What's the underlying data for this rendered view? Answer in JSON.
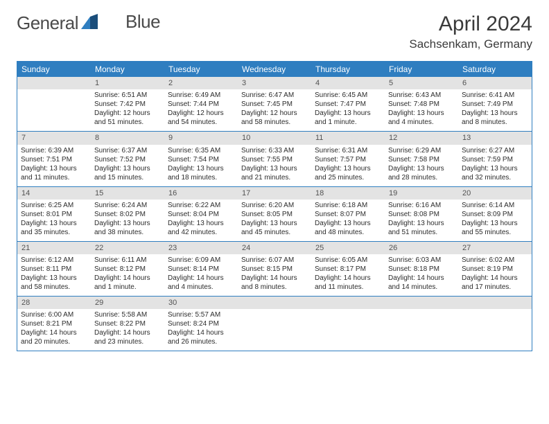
{
  "brand": {
    "part1": "General",
    "part2": "Blue"
  },
  "logo": {
    "color1": "#2f7ec0",
    "color2": "#1a4d7a"
  },
  "title": "April 2024",
  "location": "Sachsenkam, Germany",
  "header_bg": "#2f7ec0",
  "daynum_bg": "#e3e3e3",
  "day_names": [
    "Sunday",
    "Monday",
    "Tuesday",
    "Wednesday",
    "Thursday",
    "Friday",
    "Saturday"
  ],
  "weeks": [
    [
      {
        "n": "",
        "sr": "",
        "ss": "",
        "dl": ""
      },
      {
        "n": "1",
        "sr": "6:51 AM",
        "ss": "7:42 PM",
        "dl": "12 hours and 51 minutes."
      },
      {
        "n": "2",
        "sr": "6:49 AM",
        "ss": "7:44 PM",
        "dl": "12 hours and 54 minutes."
      },
      {
        "n": "3",
        "sr": "6:47 AM",
        "ss": "7:45 PM",
        "dl": "12 hours and 58 minutes."
      },
      {
        "n": "4",
        "sr": "6:45 AM",
        "ss": "7:47 PM",
        "dl": "13 hours and 1 minute."
      },
      {
        "n": "5",
        "sr": "6:43 AM",
        "ss": "7:48 PM",
        "dl": "13 hours and 4 minutes."
      },
      {
        "n": "6",
        "sr": "6:41 AM",
        "ss": "7:49 PM",
        "dl": "13 hours and 8 minutes."
      }
    ],
    [
      {
        "n": "7",
        "sr": "6:39 AM",
        "ss": "7:51 PM",
        "dl": "13 hours and 11 minutes."
      },
      {
        "n": "8",
        "sr": "6:37 AM",
        "ss": "7:52 PM",
        "dl": "13 hours and 15 minutes."
      },
      {
        "n": "9",
        "sr": "6:35 AM",
        "ss": "7:54 PM",
        "dl": "13 hours and 18 minutes."
      },
      {
        "n": "10",
        "sr": "6:33 AM",
        "ss": "7:55 PM",
        "dl": "13 hours and 21 minutes."
      },
      {
        "n": "11",
        "sr": "6:31 AM",
        "ss": "7:57 PM",
        "dl": "13 hours and 25 minutes."
      },
      {
        "n": "12",
        "sr": "6:29 AM",
        "ss": "7:58 PM",
        "dl": "13 hours and 28 minutes."
      },
      {
        "n": "13",
        "sr": "6:27 AM",
        "ss": "7:59 PM",
        "dl": "13 hours and 32 minutes."
      }
    ],
    [
      {
        "n": "14",
        "sr": "6:25 AM",
        "ss": "8:01 PM",
        "dl": "13 hours and 35 minutes."
      },
      {
        "n": "15",
        "sr": "6:24 AM",
        "ss": "8:02 PM",
        "dl": "13 hours and 38 minutes."
      },
      {
        "n": "16",
        "sr": "6:22 AM",
        "ss": "8:04 PM",
        "dl": "13 hours and 42 minutes."
      },
      {
        "n": "17",
        "sr": "6:20 AM",
        "ss": "8:05 PM",
        "dl": "13 hours and 45 minutes."
      },
      {
        "n": "18",
        "sr": "6:18 AM",
        "ss": "8:07 PM",
        "dl": "13 hours and 48 minutes."
      },
      {
        "n": "19",
        "sr": "6:16 AM",
        "ss": "8:08 PM",
        "dl": "13 hours and 51 minutes."
      },
      {
        "n": "20",
        "sr": "6:14 AM",
        "ss": "8:09 PM",
        "dl": "13 hours and 55 minutes."
      }
    ],
    [
      {
        "n": "21",
        "sr": "6:12 AM",
        "ss": "8:11 PM",
        "dl": "13 hours and 58 minutes."
      },
      {
        "n": "22",
        "sr": "6:11 AM",
        "ss": "8:12 PM",
        "dl": "14 hours and 1 minute."
      },
      {
        "n": "23",
        "sr": "6:09 AM",
        "ss": "8:14 PM",
        "dl": "14 hours and 4 minutes."
      },
      {
        "n": "24",
        "sr": "6:07 AM",
        "ss": "8:15 PM",
        "dl": "14 hours and 8 minutes."
      },
      {
        "n": "25",
        "sr": "6:05 AM",
        "ss": "8:17 PM",
        "dl": "14 hours and 11 minutes."
      },
      {
        "n": "26",
        "sr": "6:03 AM",
        "ss": "8:18 PM",
        "dl": "14 hours and 14 minutes."
      },
      {
        "n": "27",
        "sr": "6:02 AM",
        "ss": "8:19 PM",
        "dl": "14 hours and 17 minutes."
      }
    ],
    [
      {
        "n": "28",
        "sr": "6:00 AM",
        "ss": "8:21 PM",
        "dl": "14 hours and 20 minutes."
      },
      {
        "n": "29",
        "sr": "5:58 AM",
        "ss": "8:22 PM",
        "dl": "14 hours and 23 minutes."
      },
      {
        "n": "30",
        "sr": "5:57 AM",
        "ss": "8:24 PM",
        "dl": "14 hours and 26 minutes."
      },
      {
        "n": "",
        "sr": "",
        "ss": "",
        "dl": ""
      },
      {
        "n": "",
        "sr": "",
        "ss": "",
        "dl": ""
      },
      {
        "n": "",
        "sr": "",
        "ss": "",
        "dl": ""
      },
      {
        "n": "",
        "sr": "",
        "ss": "",
        "dl": ""
      }
    ]
  ],
  "labels": {
    "sunrise": "Sunrise: ",
    "sunset": "Sunset: ",
    "daylight": "Daylight: "
  }
}
